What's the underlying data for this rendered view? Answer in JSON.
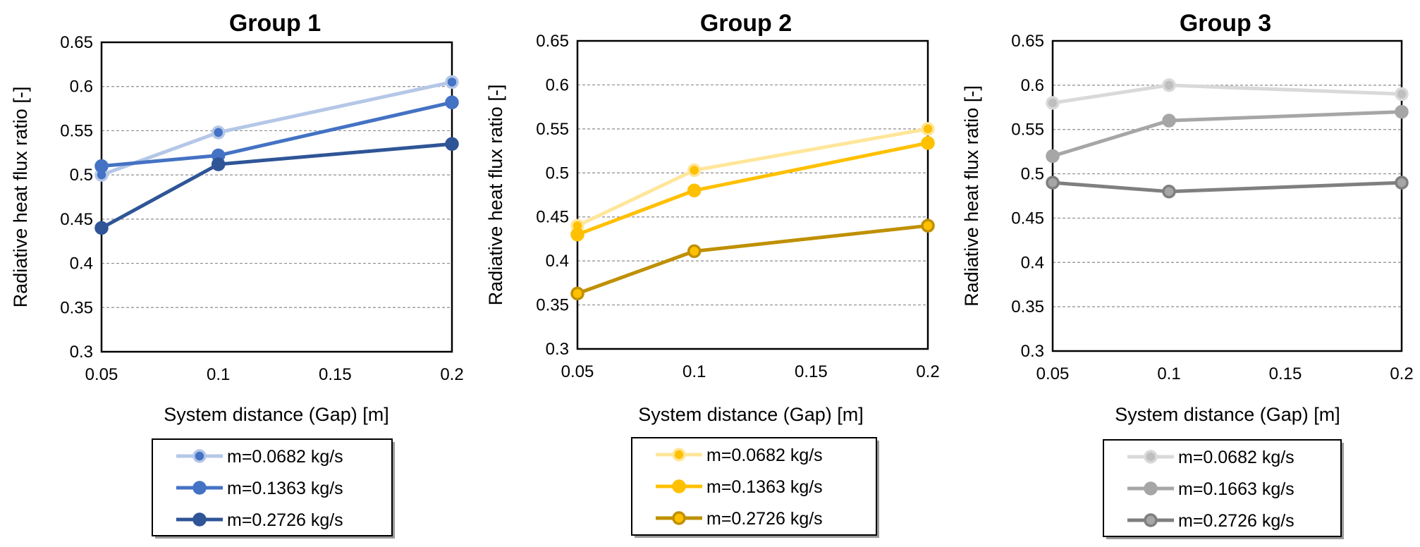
{
  "chart_data": [
    {
      "type": "line",
      "title": "Group 1",
      "xlabel": "System distance (Gap) [m]",
      "ylabel": "Radiative  heat  flux  ratio  [-]",
      "xlim": [
        0.05,
        0.2
      ],
      "ylim": [
        0.3,
        0.65
      ],
      "xticks": [
        "0.05",
        "0.1",
        "0.15",
        "0.2"
      ],
      "yticks": [
        "0.3",
        "0.35",
        "0.4",
        "0.45",
        "0.5",
        "0.55",
        "0.6",
        "0.65"
      ],
      "grid": true,
      "legend_position": "bottom",
      "x": [
        0.05,
        0.1,
        0.2
      ],
      "series": [
        {
          "name": "m=0.0682 kg/s",
          "values": [
            0.5,
            0.548,
            0.605
          ],
          "color": "#b4c7e7",
          "marker_edge": "#b4c7e7",
          "marker_fill": "#4472c4"
        },
        {
          "name": "m=0.1363 kg/s",
          "values": [
            0.51,
            0.522,
            0.582
          ],
          "color": "#4472c4",
          "marker_edge": "#4472c4",
          "marker_fill": "#4472c4"
        },
        {
          "name": "m=0.2726 kg/s",
          "values": [
            0.44,
            0.512,
            0.535
          ],
          "color": "#2f5597",
          "marker_edge": "#2f5597",
          "marker_fill": "#2f5597"
        }
      ]
    },
    {
      "type": "line",
      "title": "Group 2",
      "xlabel": "System distance (Gap)  [m]",
      "ylabel": "Radiative  heat  flux  ratio  [-]",
      "xlim": [
        0.05,
        0.2
      ],
      "ylim": [
        0.3,
        0.65
      ],
      "xticks": [
        "0.05",
        "0.1",
        "0.15",
        "0.2"
      ],
      "yticks": [
        "0.3",
        "0.35",
        "0.4",
        "0.45",
        "0.5",
        "0.55",
        "0.6",
        "0.65"
      ],
      "grid": true,
      "legend_position": "bottom",
      "x": [
        0.05,
        0.1,
        0.2
      ],
      "series": [
        {
          "name": "m=0.0682 kg/s",
          "values": [
            0.44,
            0.503,
            0.55
          ],
          "color": "#ffe699",
          "marker_edge": "#ffe699",
          "marker_fill": "#ffc000"
        },
        {
          "name": "m=0.1363 kg/s",
          "values": [
            0.43,
            0.48,
            0.534
          ],
          "color": "#ffc000",
          "marker_edge": "#ffc000",
          "marker_fill": "#ffc000"
        },
        {
          "name": "m=0.2726 kg/s",
          "values": [
            0.363,
            0.411,
            0.44
          ],
          "color": "#bf9000",
          "marker_edge": "#bf9000",
          "marker_fill": "#ffc000"
        }
      ]
    },
    {
      "type": "line",
      "title": "Group 3",
      "xlabel": "System distance (Gap) [m]",
      "ylabel": "Radiative  heat  flux  ratio  [-]",
      "xlim": [
        0.05,
        0.2
      ],
      "ylim": [
        0.3,
        0.65
      ],
      "xticks": [
        "0.05",
        "0.1",
        "0.15",
        "0.2"
      ],
      "yticks": [
        "0.3",
        "0.35",
        "0.4",
        "0.45",
        "0.5",
        "0.55",
        "0.6",
        "0.65"
      ],
      "grid": true,
      "legend_position": "bottom",
      "x": [
        0.05,
        0.1,
        0.2
      ],
      "series": [
        {
          "name": "m=0.0682 kg/s",
          "values": [
            0.58,
            0.6,
            0.59
          ],
          "color": "#d9d9d9",
          "marker_edge": "#d9d9d9",
          "marker_fill": "#bfbfbf"
        },
        {
          "name": "m=0.1663 kg/s",
          "values": [
            0.52,
            0.56,
            0.57
          ],
          "color": "#a6a6a6",
          "marker_edge": "#a6a6a6",
          "marker_fill": "#a6a6a6"
        },
        {
          "name": "m=0.2726 kg/s",
          "values": [
            0.49,
            0.48,
            0.49
          ],
          "color": "#7f7f7f",
          "marker_edge": "#7f7f7f",
          "marker_fill": "#a6a6a6"
        }
      ]
    }
  ]
}
